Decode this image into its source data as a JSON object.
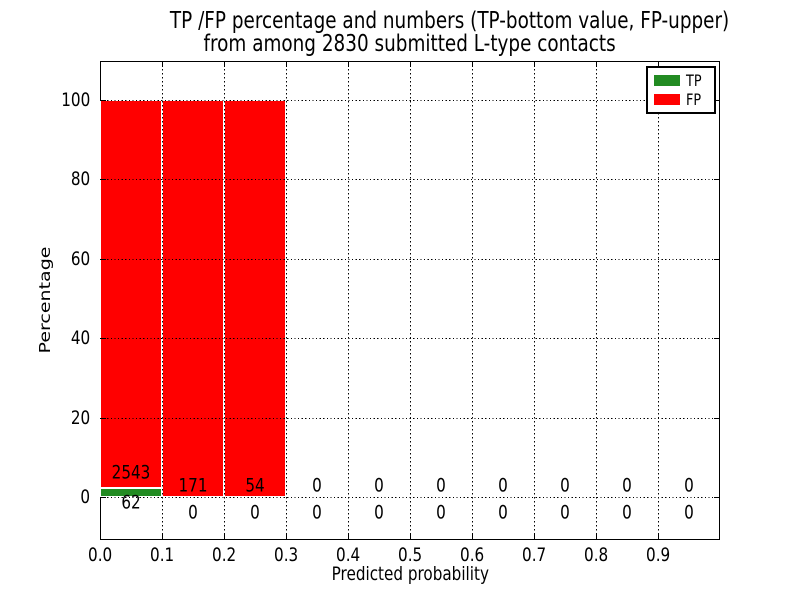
{
  "title": {
    "line1": "TP /FP percentage and numbers (TP-bottom value, FP-upper)",
    "line2": "from among 2830 submitted L-type contacts"
  },
  "axes": {
    "xlabel": "Predicted probability",
    "ylabel": "Percentage",
    "xtick_labels": [
      "0.0",
      "0.1",
      "0.2",
      "0.3",
      "0.4",
      "0.5",
      "0.6",
      "0.7",
      "0.8",
      "0.9"
    ],
    "ytick_labels": [
      "0",
      "20",
      "40",
      "60",
      "80",
      "100"
    ]
  },
  "legend": {
    "entries": [
      {
        "label": "TP",
        "color": "#228b22"
      },
      {
        "label": "FP",
        "color": "#ff0000"
      }
    ]
  },
  "colors": {
    "tp_bar": "#228b22",
    "fp_bar": "#ff0000",
    "bar_edge": "#ffffff",
    "grid": "#000000",
    "text": "#000000",
    "background": "#ffffff"
  },
  "chart_data": {
    "type": "bar",
    "subtype": "stacked-percentage-histogram",
    "title": "TP /FP percentage and numbers (TP-bottom value, FP-upper) from among 2830 submitted L-type contacts",
    "xlabel": "Predicted probability",
    "ylabel": "Percentage",
    "xlim": [
      0.0,
      1.0
    ],
    "ylim": [
      -10.8,
      109.6
    ],
    "xticks": [
      0.0,
      0.1,
      0.2,
      0.3,
      0.4,
      0.5,
      0.6,
      0.7,
      0.8,
      0.9
    ],
    "yticks": [
      0,
      20,
      40,
      60,
      80,
      100
    ],
    "grid": true,
    "legend_position": "upper right",
    "total_contacts": 2830,
    "bin_width": 0.1,
    "bin_starts": [
      0.0,
      0.1,
      0.2,
      0.3,
      0.4,
      0.5,
      0.6,
      0.7,
      0.8,
      0.9
    ],
    "series": [
      {
        "name": "TP",
        "color": "#228b22",
        "counts": [
          62,
          0,
          0,
          0,
          0,
          0,
          0,
          0,
          0,
          0
        ]
      },
      {
        "name": "FP",
        "color": "#ff0000",
        "counts": [
          2543,
          171,
          54,
          0,
          0,
          0,
          0,
          0,
          0,
          0
        ]
      }
    ],
    "percent_stacked_to": 100
  }
}
